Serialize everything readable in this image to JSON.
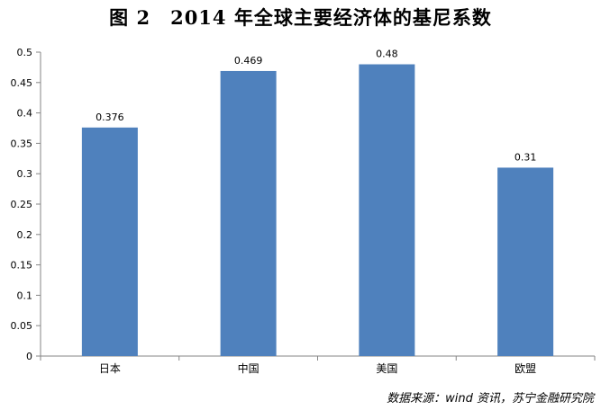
{
  "colors": {
    "bar": "#4F81BD",
    "axis": "#868686",
    "text": "#000000"
  },
  "source": "数据来源：wind 资讯，苏宁金融研究院",
  "chart_data": {
    "type": "bar",
    "title": "图 2　2014 年全球主要经济体的基尼系数",
    "xlabel": "",
    "ylabel": "",
    "categories": [
      "日本",
      "中国",
      "美国",
      "欧盟"
    ],
    "values": [
      0.376,
      0.469,
      0.48,
      0.31
    ],
    "value_labels": [
      "0.376",
      "0.469",
      "0.48",
      "0.31"
    ],
    "ylim": [
      0,
      0.5
    ],
    "yticks": [
      "0",
      "0.05",
      "0.1",
      "0.15",
      "0.2",
      "0.25",
      "0.3",
      "0.35",
      "0.4",
      "0.45",
      "0.5"
    ],
    "grid": false,
    "legend": "none"
  }
}
